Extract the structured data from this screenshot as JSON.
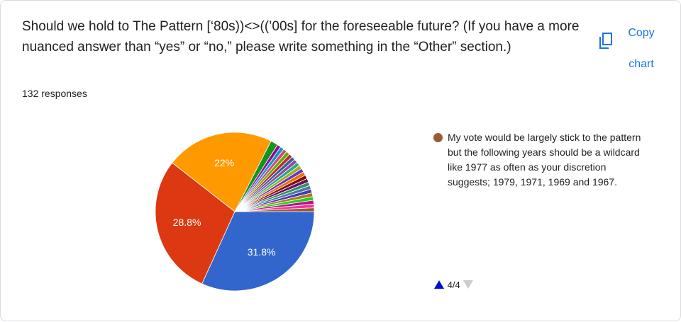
{
  "header": {
    "title": "Should we hold to The Pattern [‘80s))<>((’00s]  for the foreseeable future? (If you have a more nuanced answer than “yes” or “no,” please write something in the “Other” section.)",
    "responses": "132 responses"
  },
  "copy_button": "Copy chart",
  "pagination": "4/4",
  "chart_data": {
    "type": "pie",
    "categories": [
      null,
      null,
      null,
      null,
      null,
      null,
      null,
      null,
      null,
      null,
      null,
      null,
      null,
      null,
      null,
      null,
      null,
      null,
      null,
      null,
      null,
      null,
      null,
      null,
      "My vote would be largely stick to the pattern but the following years should be a wildcard like 1977 as often as your discretion suggests; 1979, 1971, 1969 and 1967."
    ],
    "values": [
      31.8,
      28.8,
      22,
      1.5,
      0.76,
      0.76,
      0.76,
      0.76,
      0.76,
      0.76,
      0.76,
      0.76,
      0.76,
      0.76,
      0.76,
      0.76,
      0.76,
      0.76,
      0.76,
      0.76,
      0.76,
      0.76,
      0.76,
      0.76,
      0.76
    ],
    "value_labels": [
      "31.8%",
      "28.8%",
      "22%",
      null,
      null,
      null,
      null,
      null,
      null,
      null,
      null,
      null,
      null,
      null,
      null,
      null,
      null,
      null,
      null,
      null,
      null,
      null,
      null,
      null,
      null
    ],
    "colors": [
      "#3366cc",
      "#dc3912",
      "#ff9900",
      "#109618",
      "#990099",
      "#0099c6",
      "#dd4477",
      "#66aa00",
      "#b82e2e",
      "#316395",
      "#994499",
      "#22aa99",
      "#aaaa11",
      "#6633cc",
      "#e67300",
      "#8b0707",
      "#651067",
      "#329262",
      "#5574a6",
      "#3b3eac",
      "#b77322",
      "#16d620",
      "#b91383",
      "#f4359e",
      "#9c5935"
    ]
  }
}
